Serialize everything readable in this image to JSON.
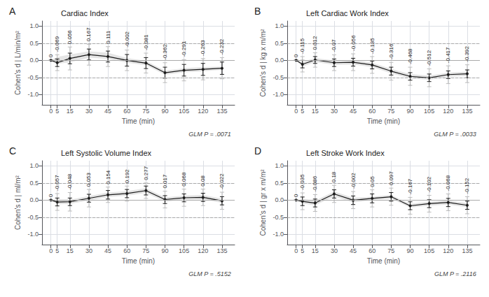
{
  "chart_data": [
    {
      "type": "line",
      "panel_label": "A",
      "title": "Cardiac Index",
      "xlabel": "Time (min)",
      "ylabel": "Cohen's d | L/min/m²",
      "annotation": "GLM P = .0071",
      "x": [
        0,
        5,
        15,
        30,
        45,
        60,
        75,
        90,
        105,
        120,
        135
      ],
      "xlim": [
        -7,
        145
      ],
      "xticks": [
        0,
        5,
        15,
        30,
        45,
        60,
        75,
        90,
        105,
        120,
        135
      ],
      "ylim": [
        -1.3,
        1.15
      ],
      "yticks": [
        {
          "value": -1.0,
          "label": "-1.0"
        },
        {
          "value": -0.5,
          "label": "-0.5"
        },
        {
          "value": 0.0,
          "label": "0.0"
        },
        {
          "value": 0.5,
          "label": "0.5"
        },
        {
          "value": 1.0,
          "label": "1.0"
        }
      ],
      "grid": true,
      "data_labels": true,
      "reference_lines": [
        {
          "value": 0.5,
          "line_style": "dashed"
        },
        {
          "value": -0.5,
          "line_style": "dashed"
        },
        {
          "value": 0.0,
          "line_style": "solid"
        }
      ],
      "series": [
        {
          "type": "band",
          "color": "#cccccc",
          "low": [
            0,
            -0.1,
            -0.06,
            0.08,
            0.04,
            -0.07,
            -0.14,
            -0.42,
            -0.35,
            -0.32,
            -0.28
          ],
          "high": [
            0,
            0.1,
            0.17,
            0.26,
            0.22,
            0.07,
            -0.02,
            -0.3,
            -0.23,
            -0.2,
            -0.18
          ]
        },
        {
          "type": "errorbar",
          "color": "#bbbbbb",
          "low": [
            0,
            -0.3,
            -0.28,
            -0.14,
            -0.18,
            -0.3,
            -0.37,
            -0.65,
            -0.6,
            -0.57,
            -0.54
          ],
          "high": [
            0,
            0.16,
            0.39,
            0.47,
            0.4,
            0.3,
            0.21,
            -0.07,
            0.02,
            0.05,
            0.08
          ]
        },
        {
          "type": "errorbar",
          "color": "#1a1a1a",
          "low": [
            0,
            -0.18,
            -0.1,
            0.01,
            -0.05,
            -0.17,
            -0.24,
            -0.52,
            -0.46,
            -0.44,
            -0.41
          ],
          "high": [
            0,
            0.04,
            0.21,
            0.33,
            0.27,
            0.17,
            0.08,
            -0.2,
            -0.12,
            -0.09,
            -0.05
          ]
        },
        {
          "type": "line",
          "color": "#1a1a1a",
          "marker": "circle",
          "values": [
            0,
            -0.069,
            0.056,
            0.167,
            0.111,
            -0.002,
            -0.081,
            -0.362,
            -0.291,
            -0.263,
            -0.232
          ]
        }
      ]
    },
    {
      "type": "line",
      "panel_label": "B",
      "title": "Left Cardiac Work Index",
      "xlabel": "Time (min)",
      "ylabel": "Cohen's d | kg x m/m²",
      "annotation": "GLM P = .0033",
      "x": [
        0,
        5,
        15,
        30,
        45,
        60,
        75,
        90,
        105,
        120,
        135
      ],
      "xlim": [
        -7,
        145
      ],
      "xticks": [
        0,
        5,
        15,
        30,
        45,
        60,
        75,
        90,
        105,
        120,
        135
      ],
      "ylim": [
        -1.3,
        1.15
      ],
      "yticks": [
        {
          "value": -1.0,
          "label": "-1.0"
        },
        {
          "value": -0.5,
          "label": "-0.5"
        },
        {
          "value": 0.0,
          "label": "0.0"
        },
        {
          "value": 0.5,
          "label": "0.5"
        },
        {
          "value": 1.0,
          "label": "1.0"
        }
      ],
      "grid": true,
      "data_labels": true,
      "reference_lines": [
        {
          "value": 0.5,
          "line_style": "dashed"
        },
        {
          "value": -0.5,
          "line_style": "dashed"
        },
        {
          "value": 0.0,
          "line_style": "solid"
        }
      ],
      "series": [
        {
          "type": "band",
          "color": "#cccccc",
          "low": [
            0,
            -0.18,
            -0.05,
            -0.13,
            -0.12,
            -0.2,
            -0.38,
            -0.53,
            -0.57,
            -0.48,
            -0.46
          ],
          "high": [
            0,
            -0.05,
            0.07,
            -0.01,
            0.01,
            -0.07,
            -0.25,
            -0.4,
            -0.45,
            -0.36,
            -0.33
          ]
        },
        {
          "type": "errorbar",
          "color": "#bbbbbb",
          "low": [
            0,
            -0.34,
            -0.2,
            -0.3,
            -0.3,
            -0.38,
            -0.58,
            -0.73,
            -0.77,
            -0.68,
            -0.65
          ],
          "high": [
            0,
            0.11,
            0.22,
            0.16,
            0.19,
            0.11,
            -0.06,
            -0.2,
            -0.25,
            -0.16,
            -0.13
          ]
        },
        {
          "type": "errorbar",
          "color": "#1a1a1a",
          "low": [
            0,
            -0.22,
            -0.09,
            -0.18,
            -0.17,
            -0.25,
            -0.43,
            -0.58,
            -0.62,
            -0.53,
            -0.51
          ],
          "high": [
            0,
            0.0,
            0.11,
            0.04,
            0.06,
            -0.02,
            -0.2,
            -0.36,
            -0.4,
            -0.31,
            -0.28
          ]
        },
        {
          "type": "line",
          "color": "#1a1a1a",
          "marker": "circle",
          "values": [
            0,
            -0.115,
            0.012,
            -0.07,
            -0.056,
            -0.135,
            -0.316,
            -0.468,
            -0.512,
            -0.417,
            -0.392
          ]
        }
      ]
    },
    {
      "type": "line",
      "panel_label": "C",
      "title": "Left Systolic Volume Index",
      "xlabel": "Time (min)",
      "ylabel": "Cohen's d | ml/m²",
      "annotation": "GLM P = .5152",
      "x": [
        0,
        5,
        15,
        30,
        45,
        60,
        75,
        90,
        105,
        120,
        135
      ],
      "xlim": [
        -7,
        145
      ],
      "xticks": [
        0,
        5,
        15,
        30,
        45,
        60,
        75,
        90,
        105,
        120,
        135
      ],
      "ylim": [
        -1.3,
        1.15
      ],
      "yticks": [
        {
          "value": -1.0,
          "label": "-1.0"
        },
        {
          "value": -0.5,
          "label": "-0.5"
        },
        {
          "value": 0.0,
          "label": "0.0"
        },
        {
          "value": 0.5,
          "label": "0.5"
        },
        {
          "value": 1.0,
          "label": "1.0"
        }
      ],
      "grid": true,
      "data_labels": true,
      "reference_lines": [
        {
          "value": 0.5,
          "line_style": "dashed"
        },
        {
          "value": -0.5,
          "line_style": "dashed"
        },
        {
          "value": 0.0,
          "line_style": "solid"
        }
      ],
      "series": [
        {
          "type": "band",
          "color": "#cccccc",
          "low": [
            0,
            -0.12,
            -0.11,
            -0.01,
            0.09,
            0.13,
            0.21,
            -0.05,
            0.01,
            0.02,
            -0.08
          ],
          "high": [
            0,
            0.01,
            0.01,
            0.12,
            0.22,
            0.26,
            0.35,
            0.08,
            0.13,
            0.15,
            0.04
          ]
        },
        {
          "type": "errorbar",
          "color": "#bbbbbb",
          "low": [
            0,
            -0.3,
            -0.32,
            -0.2,
            -0.07,
            -0.03,
            0.05,
            -0.23,
            -0.18,
            -0.16,
            -0.27
          ],
          "high": [
            0,
            0.19,
            0.22,
            0.31,
            0.38,
            0.41,
            0.5,
            0.26,
            0.32,
            0.32,
            0.23
          ]
        },
        {
          "type": "errorbar",
          "color": "#1a1a1a",
          "low": [
            0,
            -0.17,
            -0.16,
            -0.06,
            0.03,
            0.07,
            0.15,
            -0.1,
            -0.05,
            -0.04,
            -0.14
          ],
          "high": [
            0,
            0.06,
            0.06,
            0.17,
            0.28,
            0.31,
            0.41,
            0.13,
            0.18,
            0.2,
            0.1
          ]
        },
        {
          "type": "line",
          "color": "#1a1a1a",
          "marker": "circle",
          "values": [
            0,
            -0.057,
            -0.048,
            0.053,
            0.154,
            0.192,
            0.277,
            0.017,
            0.068,
            0.08,
            -0.022
          ]
        }
      ]
    },
    {
      "type": "line",
      "panel_label": "D",
      "title": "Left Stroke Work Index",
      "xlabel": "Time (min)",
      "ylabel": "Cohen's d | gr x m/m²",
      "annotation": "GLM P = .2116",
      "x": [
        0,
        5,
        15,
        30,
        45,
        60,
        75,
        90,
        105,
        120,
        135
      ],
      "xlim": [
        -7,
        145
      ],
      "xticks": [
        0,
        5,
        15,
        30,
        45,
        60,
        75,
        90,
        105,
        120,
        135
      ],
      "ylim": [
        -1.3,
        1.15
      ],
      "yticks": [
        {
          "value": -1.0,
          "label": "-1.0"
        },
        {
          "value": -0.5,
          "label": "-0.5"
        },
        {
          "value": 0.0,
          "label": "0.0"
        },
        {
          "value": 0.5,
          "label": "0.5"
        },
        {
          "value": 1.0,
          "label": "1.0"
        }
      ],
      "grid": true,
      "data_labels": true,
      "reference_lines": [
        {
          "value": 0.5,
          "line_style": "dashed"
        },
        {
          "value": -0.5,
          "line_style": "dashed"
        },
        {
          "value": 0.0,
          "line_style": "solid"
        }
      ],
      "series": [
        {
          "type": "band",
          "color": "#cccccc",
          "low": [
            0,
            -0.1,
            -0.15,
            0.11,
            -0.07,
            0.0,
            0.04,
            -0.22,
            -0.16,
            -0.13,
            -0.21
          ],
          "high": [
            0,
            0.03,
            -0.02,
            0.25,
            0.07,
            0.1,
            0.15,
            -0.11,
            -0.05,
            -0.01,
            -0.09
          ]
        },
        {
          "type": "errorbar",
          "color": "#bbbbbb",
          "low": [
            0,
            -0.28,
            -0.33,
            -0.07,
            -0.25,
            -0.2,
            -0.15,
            -0.41,
            -0.35,
            -0.31,
            -0.4
          ],
          "high": [
            0,
            0.21,
            0.16,
            0.43,
            0.25,
            0.3,
            0.35,
            0.08,
            0.14,
            0.18,
            0.1
          ]
        },
        {
          "type": "errorbar",
          "color": "#1a1a1a",
          "low": [
            0,
            -0.16,
            -0.2,
            0.06,
            -0.13,
            -0.08,
            -0.03,
            -0.28,
            -0.22,
            -0.19,
            -0.27
          ],
          "high": [
            0,
            0.09,
            0.03,
            0.3,
            0.12,
            0.18,
            0.22,
            -0.05,
            0.01,
            0.05,
            -0.03
          ]
        },
        {
          "type": "line",
          "color": "#1a1a1a",
          "marker": "circle",
          "values": [
            0,
            -0.035,
            -0.086,
            0.18,
            -0.002,
            0.05,
            0.097,
            -0.167,
            -0.102,
            -0.068,
            -0.152
          ]
        }
      ]
    }
  ]
}
